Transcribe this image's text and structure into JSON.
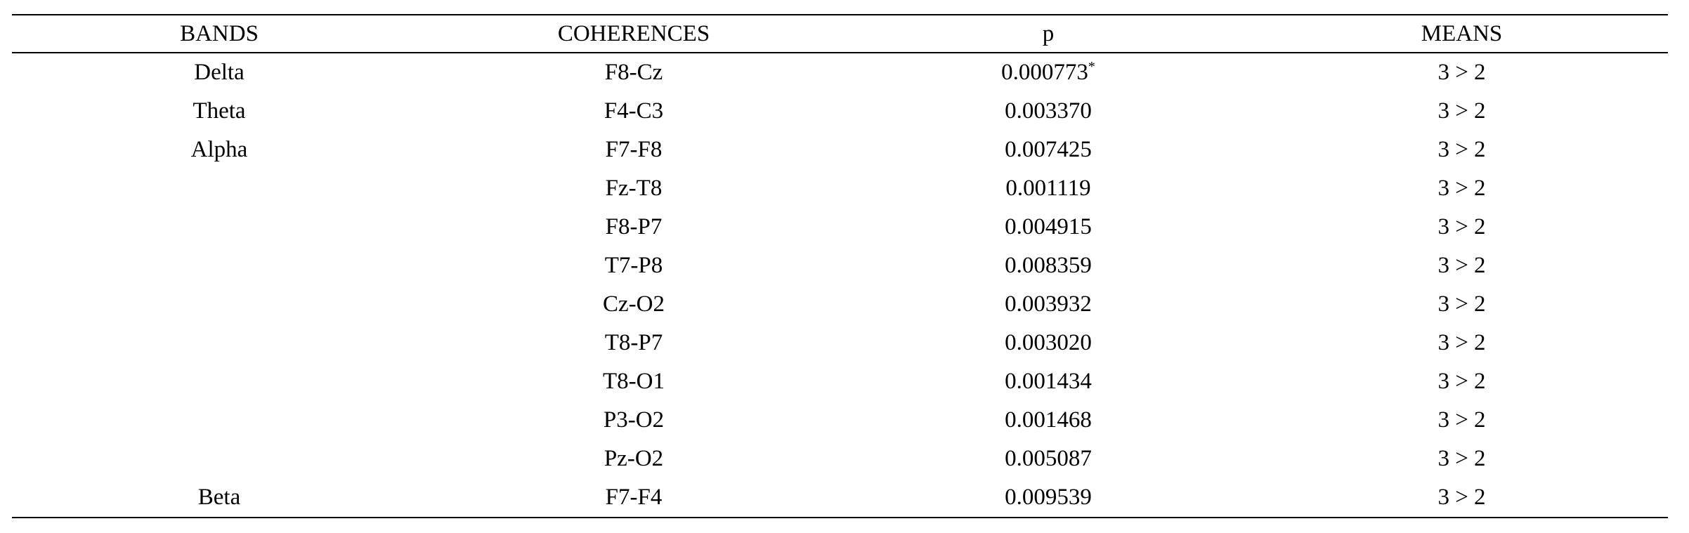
{
  "table": {
    "headers": [
      "BANDS",
      "COHERENCES",
      "p",
      "MEANS"
    ],
    "rows": [
      {
        "band": "Delta",
        "coherence": "F8-Cz",
        "p": "0.000773",
        "p_mark": "*",
        "means": "3 > 2"
      },
      {
        "band": "Theta",
        "coherence": "F4-C3",
        "p": "0.003370",
        "p_mark": "",
        "means": "3 > 2"
      },
      {
        "band": "Alpha",
        "coherence": "F7-F8",
        "p": "0.007425",
        "p_mark": "",
        "means": "3 > 2"
      },
      {
        "band": "",
        "coherence": "Fz-T8",
        "p": "0.001119",
        "p_mark": "",
        "means": "3 > 2"
      },
      {
        "band": "",
        "coherence": "F8-P7",
        "p": "0.004915",
        "p_mark": "",
        "means": "3 > 2"
      },
      {
        "band": "",
        "coherence": "T7-P8",
        "p": "0.008359",
        "p_mark": "",
        "means": "3 > 2"
      },
      {
        "band": "",
        "coherence": "Cz-O2",
        "p": "0.003932",
        "p_mark": "",
        "means": "3 > 2"
      },
      {
        "band": "",
        "coherence": "T8-P7",
        "p": "0.003020",
        "p_mark": "",
        "means": "3 > 2"
      },
      {
        "band": "",
        "coherence": "T8-O1",
        "p": "0.001434",
        "p_mark": "",
        "means": "3 > 2"
      },
      {
        "band": "",
        "coherence": "P3-O2",
        "p": "0.001468",
        "p_mark": "",
        "means": "3 > 2"
      },
      {
        "band": "",
        "coherence": "Pz-O2",
        "p": "0.005087",
        "p_mark": "",
        "means": "3 > 2"
      },
      {
        "band": "Beta",
        "coherence": "F7-F4",
        "p": "0.009539",
        "p_mark": "",
        "means": "3 > 2"
      }
    ]
  }
}
